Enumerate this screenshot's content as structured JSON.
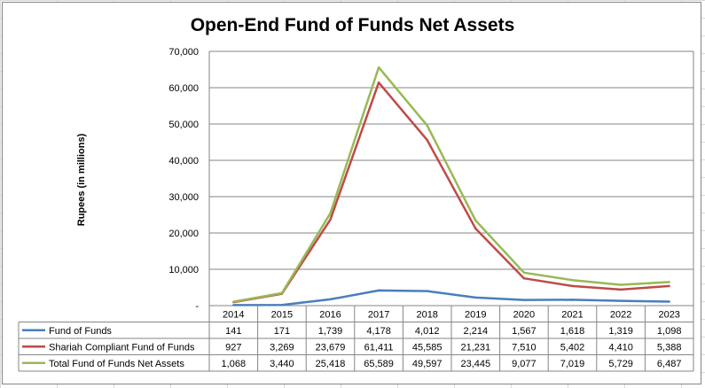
{
  "chart_data": {
    "type": "line",
    "title": "Open-End Fund of Funds Net Assets",
    "ylabel": "Rupees (in millions)",
    "xlabel": "",
    "ylim": [
      0,
      70000
    ],
    "yticks": [
      0,
      10000,
      20000,
      30000,
      40000,
      50000,
      60000,
      70000
    ],
    "ytick_labels": [
      "-",
      "10,000",
      "20,000",
      "30,000",
      "40,000",
      "50,000",
      "60,000",
      "70,000"
    ],
    "categories": [
      "2014",
      "2015",
      "2016",
      "2017",
      "2018",
      "2019",
      "2020",
      "2021",
      "2022",
      "2023"
    ],
    "grid": true,
    "legend": "data-table",
    "series": [
      {
        "name": "Fund of Funds",
        "color": "#4a7ebb",
        "values": [
          141,
          171,
          1739,
          4178,
          4012,
          2214,
          1567,
          1618,
          1319,
          1098
        ],
        "labels": [
          "141",
          "171",
          "1,739",
          "4,178",
          "4,012",
          "2,214",
          "1,567",
          "1,618",
          "1,319",
          "1,098"
        ]
      },
      {
        "name": "Shariah Compliant Fund of Funds",
        "color": "#be4b48",
        "values": [
          927,
          3269,
          23679,
          61411,
          45585,
          21231,
          7510,
          5402,
          4410,
          5388
        ],
        "labels": [
          "927",
          "3,269",
          "23,679",
          "61,411",
          "45,585",
          "21,231",
          "7,510",
          "5,402",
          "4,410",
          "5,388"
        ]
      },
      {
        "name": "Total Fund of Funds Net Assets",
        "color": "#98b954",
        "values": [
          1068,
          3440,
          25418,
          65589,
          49597,
          23445,
          9077,
          7019,
          5729,
          6487
        ],
        "labels": [
          "1,068",
          "3,440",
          "25,418",
          "65,589",
          "49,597",
          "23,445",
          "9,077",
          "7,019",
          "5,729",
          "6,487"
        ]
      }
    ]
  }
}
